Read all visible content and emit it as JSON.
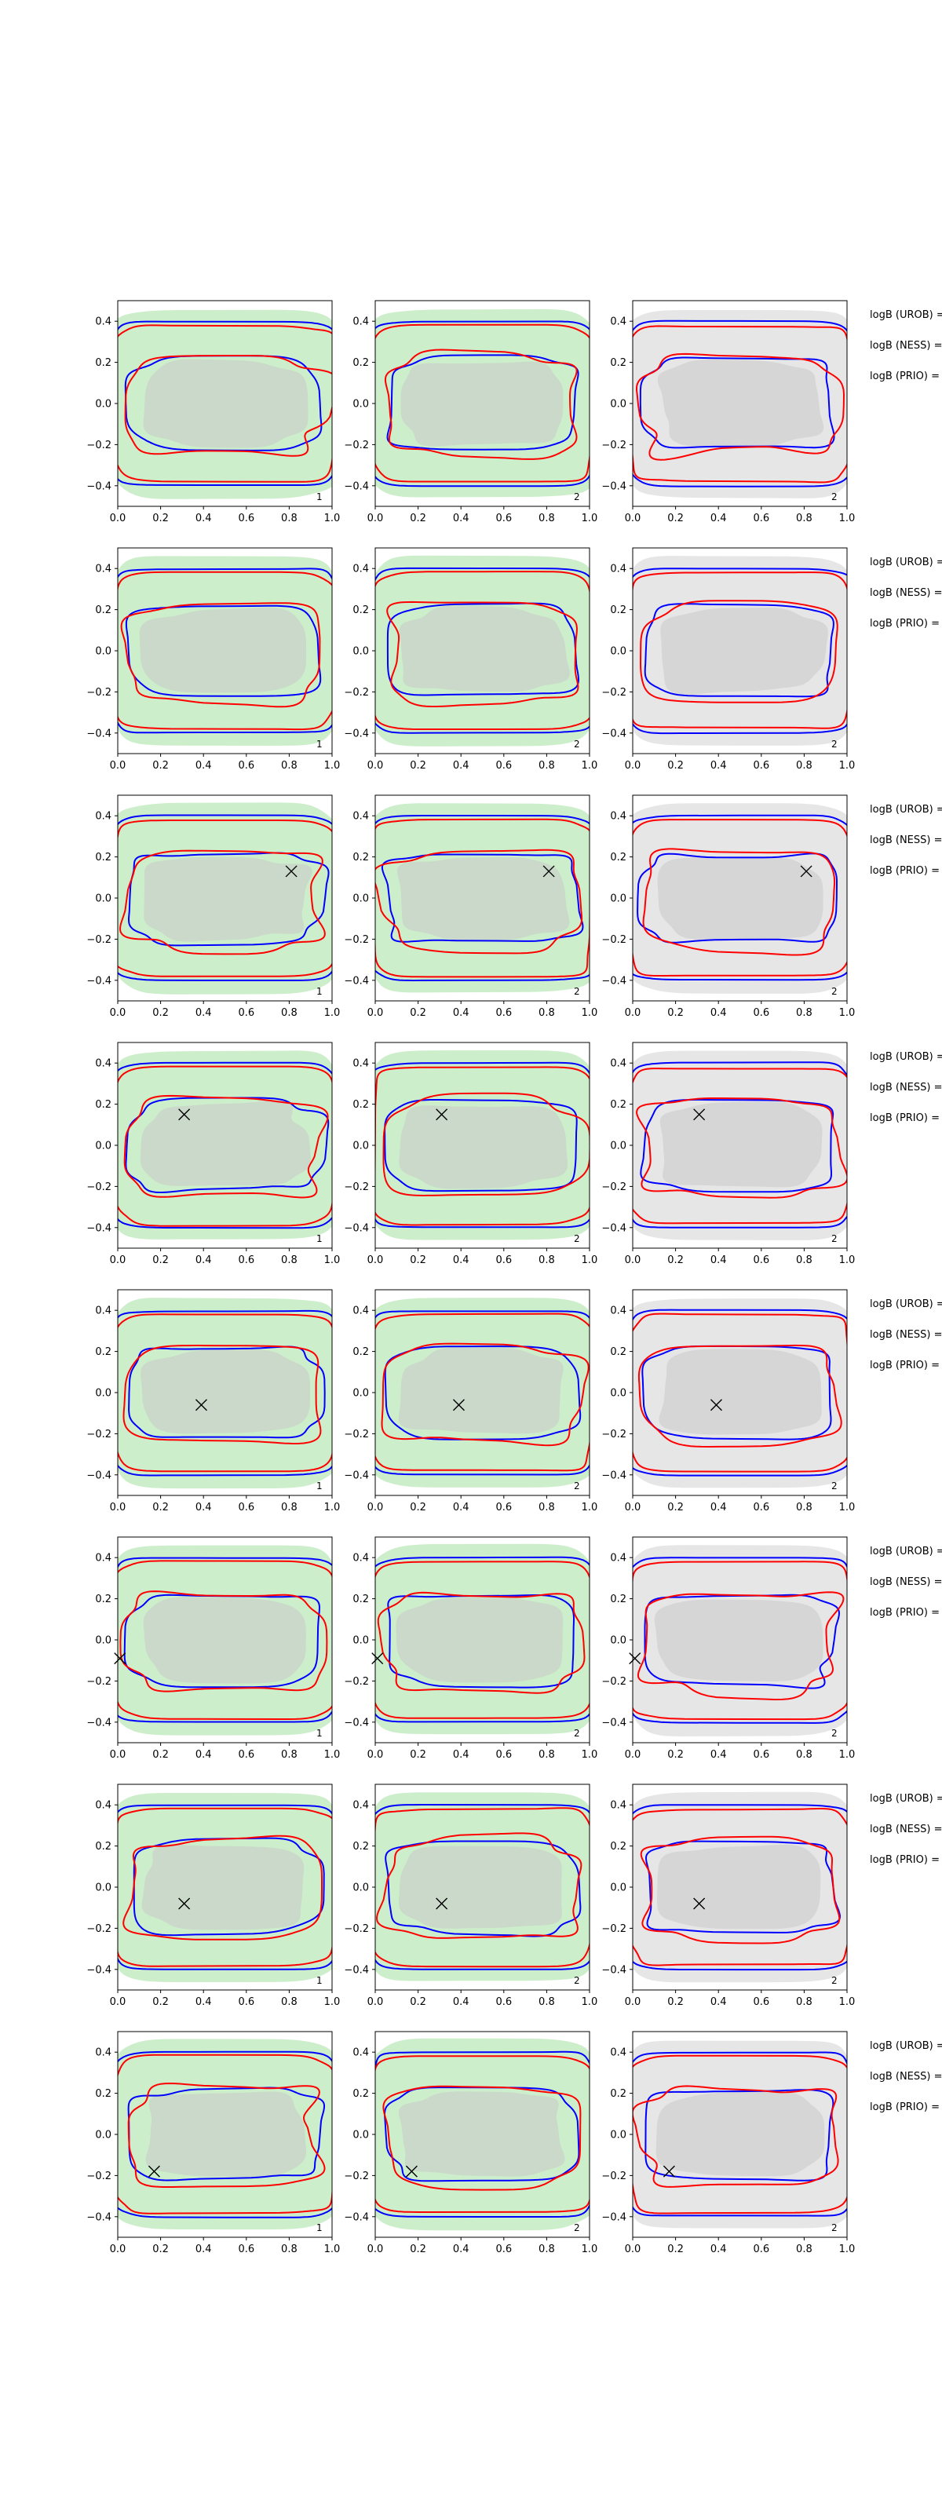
{
  "chart_data": {
    "type": "contour-grid",
    "grid": {
      "rows": 8,
      "cols": 3
    },
    "xlim": [
      0.0,
      1.0
    ],
    "ylim": [
      -0.5,
      0.5
    ],
    "x_ticks": [
      "0.0",
      "0.2",
      "0.4",
      "0.6",
      "0.8",
      "1.0"
    ],
    "y_ticks": [
      "0.4",
      "0.2",
      "0.0",
      "−0.2",
      "−0.4"
    ],
    "colors": {
      "green_fill": "#cdeecb",
      "grey_fill": "#e6e6e6",
      "grey_region": "#c8c8c8",
      "blue": "#0000ff",
      "red": "#ff0000",
      "marker": "#000000"
    },
    "column_backgrounds": [
      "green",
      "green",
      "grey"
    ],
    "corner_labels": [
      "1",
      "2",
      "2"
    ],
    "side_labels": [
      "logB (UROB) =",
      "logB (NESS) =",
      "logB (PRIO) ="
    ],
    "markers": [
      null,
      null,
      {
        "x": 0.81,
        "y": 0.13
      },
      {
        "x": 0.31,
        "y": 0.15
      },
      {
        "x": 0.39,
        "y": -0.06
      },
      {
        "x": 0.01,
        "y": -0.09
      },
      {
        "x": 0.31,
        "y": -0.08
      },
      {
        "x": 0.17,
        "y": -0.18
      }
    ]
  }
}
